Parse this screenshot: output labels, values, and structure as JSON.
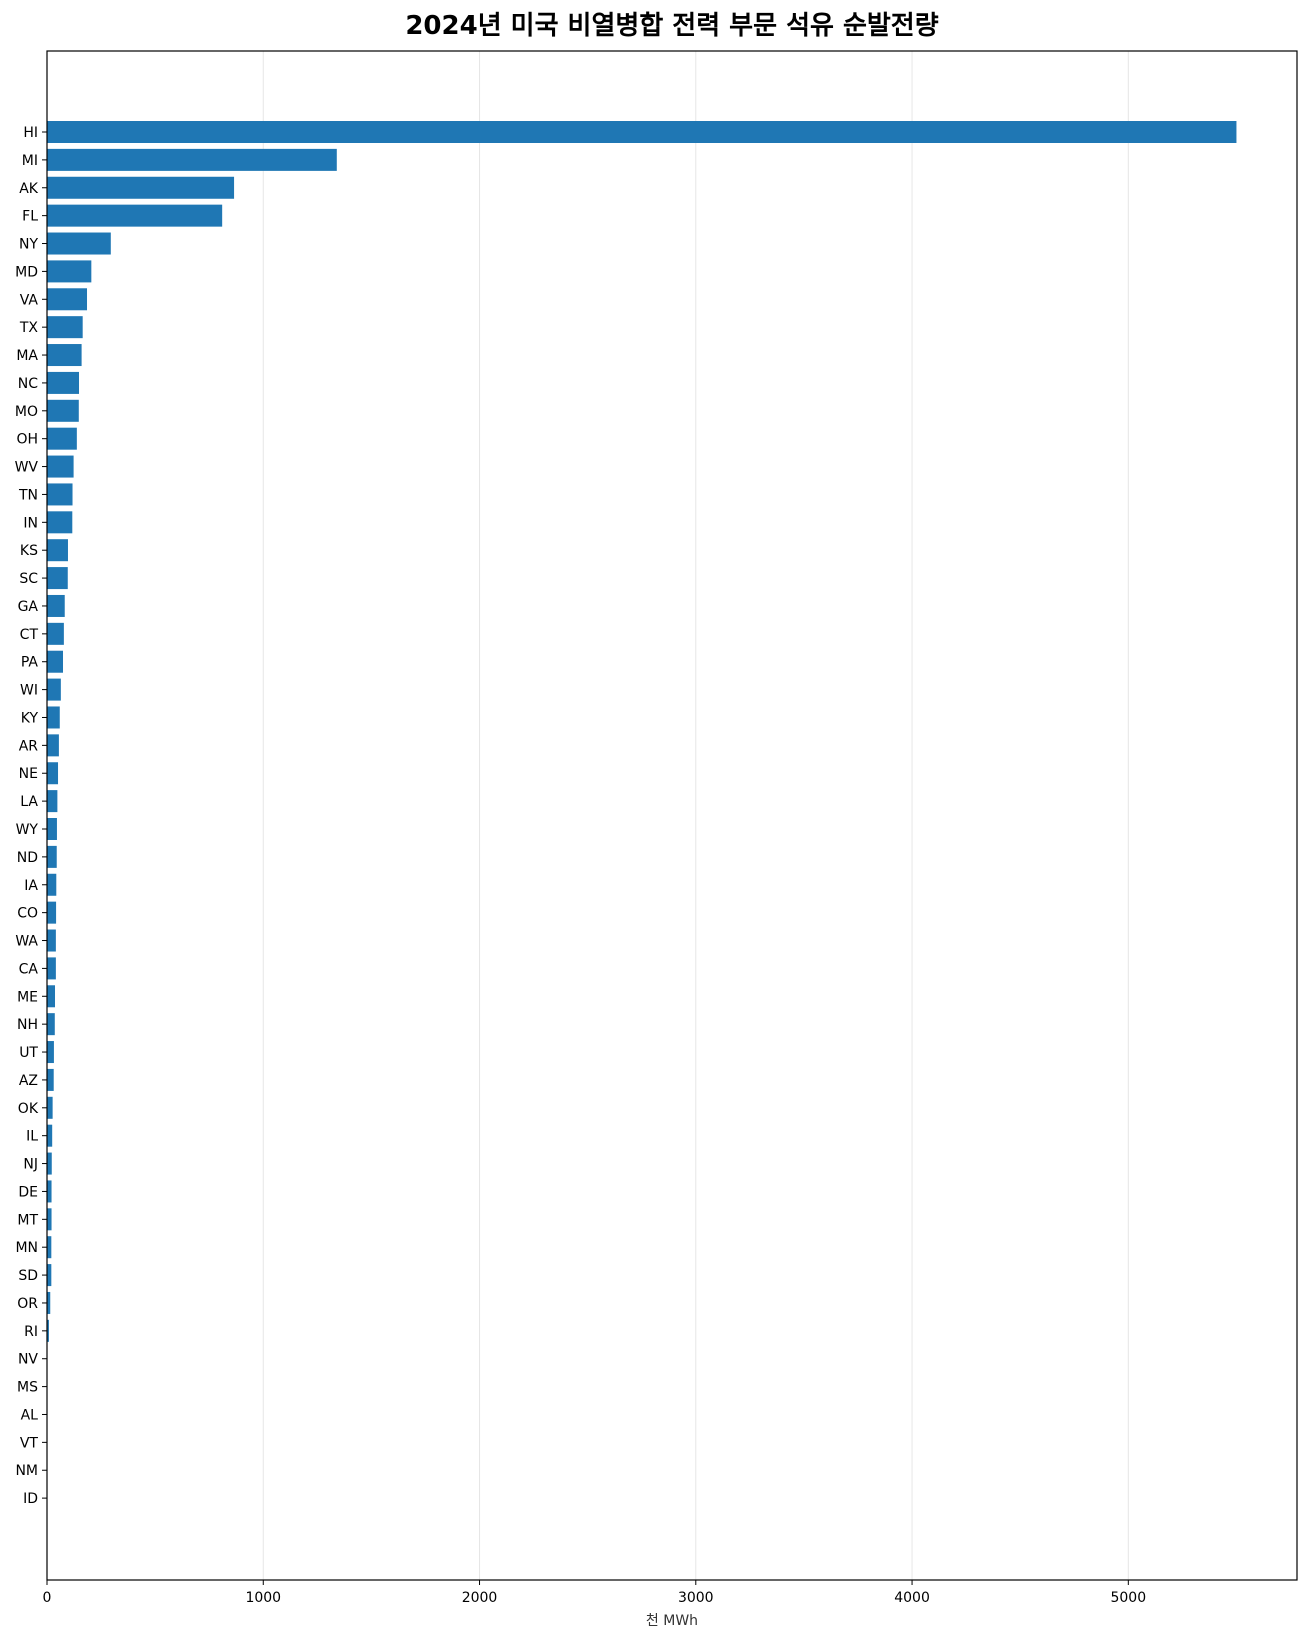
{
  "chart_data": {
    "type": "bar",
    "orientation": "horizontal",
    "title": "2024년 미국 비열병합 전력 부문 석유 순발전량",
    "xlabel": "천 MWh",
    "ylabel": "",
    "xlim": [
      0,
      5780
    ],
    "xticks": [
      "0",
      "1000",
      "2000",
      "3000",
      "4000",
      "5000"
    ],
    "grid": "vertical",
    "legend": "none",
    "bar_color": "#1f77b4",
    "categories": [
      "HI",
      "MI",
      "AK",
      "FL",
      "NY",
      "MD",
      "VA",
      "TX",
      "MA",
      "NC",
      "MO",
      "OH",
      "WV",
      "TN",
      "IN",
      "KS",
      "SC",
      "GA",
      "CT",
      "PA",
      "WI",
      "KY",
      "AR",
      "NE",
      "LA",
      "WY",
      "ND",
      "IA",
      "CO",
      "WA",
      "CA",
      "ME",
      "NH",
      "UT",
      "AZ",
      "OK",
      "IL",
      "NJ",
      "DE",
      "MT",
      "MN",
      "SD",
      "OR",
      "RI",
      "NV",
      "MS",
      "AL",
      "VT",
      "NM",
      "ID"
    ],
    "values": [
      5500,
      1340,
      865,
      810,
      295,
      205,
      185,
      165,
      160,
      148,
      147,
      138,
      123,
      118,
      117,
      97,
      96,
      82,
      78,
      74,
      64,
      59,
      55,
      51,
      48,
      46,
      45,
      43,
      42,
      41,
      41,
      37,
      36,
      32,
      31,
      26,
      24,
      22,
      21,
      21,
      20,
      20,
      15,
      9,
      2,
      1.5,
      1,
      1,
      1,
      0.5
    ]
  }
}
